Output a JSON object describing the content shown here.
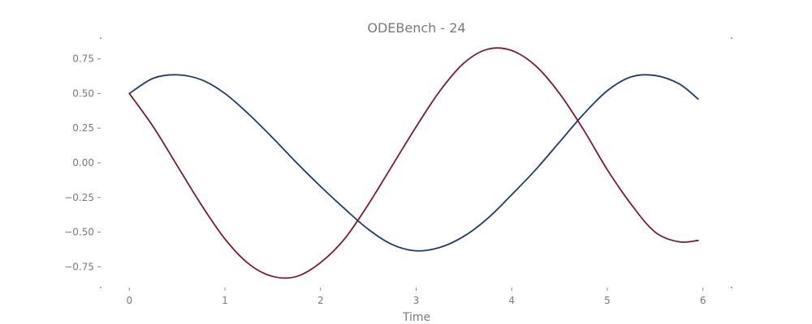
{
  "chart_data": {
    "type": "line",
    "title": "ODEBench - 24",
    "xlabel": "Time",
    "ylabel": "",
    "xlim": [
      -0.3,
      6.3
    ],
    "ylim": [
      -0.9,
      0.9
    ],
    "xticks": [
      0,
      1,
      2,
      3,
      4,
      5,
      6
    ],
    "xtick_labels": [
      "0",
      "1",
      "2",
      "3",
      "4",
      "5",
      "6"
    ],
    "yticks": [
      0.75,
      0.5,
      0.25,
      0.0,
      -0.25,
      -0.5,
      -0.75
    ],
    "ytick_labels": [
      "0.75",
      "0.50",
      "0.25",
      "0.00",
      "−0.25",
      "−0.50",
      "−0.75"
    ],
    "grid": false,
    "legend": "none",
    "series": [
      {
        "color": "#1f3a6e",
        "x": [
          0.0,
          0.25,
          0.5,
          0.75,
          1.0,
          1.25,
          1.5,
          1.75,
          2.0,
          2.25,
          2.5,
          2.75,
          3.0,
          3.25,
          3.5,
          3.75,
          4.0,
          4.25,
          4.5,
          4.75,
          5.0,
          5.25,
          5.5,
          5.75,
          5.95
        ],
        "y": [
          0.5,
          0.61,
          0.635,
          0.6,
          0.5,
          0.35,
          0.18,
          0.0,
          -0.17,
          -0.33,
          -0.48,
          -0.59,
          -0.635,
          -0.61,
          -0.53,
          -0.4,
          -0.23,
          -0.05,
          0.15,
          0.35,
          0.52,
          0.62,
          0.63,
          0.57,
          0.46
        ]
      },
      {
        "color": "#7a1a2e",
        "x": [
          0.0,
          0.25,
          0.5,
          0.75,
          1.0,
          1.25,
          1.5,
          1.75,
          2.0,
          2.25,
          2.5,
          2.75,
          3.0,
          3.25,
          3.5,
          3.75,
          4.0,
          4.25,
          4.5,
          4.75,
          5.0,
          5.25,
          5.5,
          5.75,
          5.95
        ],
        "y": [
          0.5,
          0.26,
          -0.02,
          -0.3,
          -0.55,
          -0.73,
          -0.82,
          -0.82,
          -0.72,
          -0.55,
          -0.3,
          -0.02,
          0.26,
          0.52,
          0.72,
          0.82,
          0.81,
          0.7,
          0.5,
          0.24,
          -0.05,
          -0.3,
          -0.5,
          -0.57,
          -0.56
        ]
      }
    ]
  }
}
